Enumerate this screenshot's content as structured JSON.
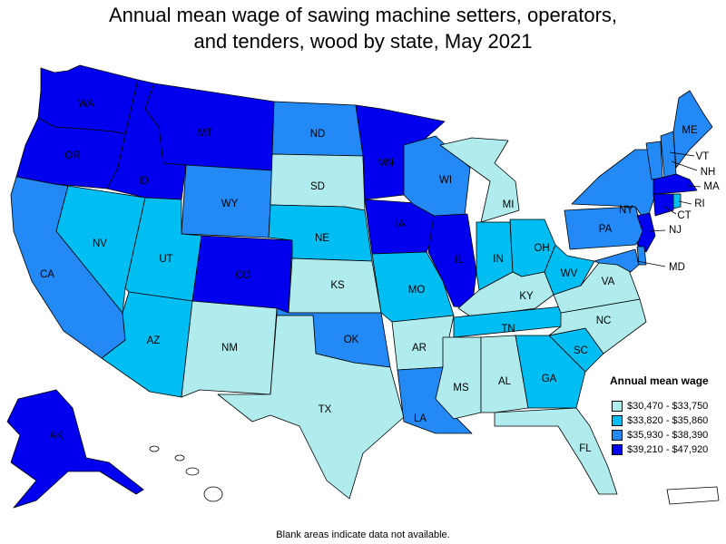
{
  "title_line1": "Annual mean wage of sawing machine setters, operators,",
  "title_line2": "and tenders, wood by state, May 2021",
  "legend": {
    "title": "Annual mean wage",
    "items": [
      {
        "label": "$30,470 - $33,750",
        "color": "#b0ecee"
      },
      {
        "label": "$33,820 - $35,860",
        "color": "#00bdf2"
      },
      {
        "label": "$35,930 - $38,390",
        "color": "#2389f5"
      },
      {
        "label": "$39,210 - $47,920",
        "color": "#0000ee"
      }
    ]
  },
  "note": "Blank areas indicate data not available.",
  "states": {
    "WA": 3,
    "OR": 3,
    "CA": 2,
    "NV": 1,
    "ID": 3,
    "MT": 3,
    "WY": 2,
    "UT": 1,
    "AZ": 1,
    "CO": 3,
    "NM": 0,
    "ND": 2,
    "SD": 0,
    "NE": 1,
    "KS": 0,
    "OK": 2,
    "TX": 0,
    "MN": 3,
    "IA": 3,
    "MO": 1,
    "AR": 0,
    "LA": 2,
    "WI": 2,
    "IL": 3,
    "MI": 0,
    "IN": 1,
    "OH": 1,
    "KY": 0,
    "TN": 1,
    "MS": 0,
    "AL": 0,
    "GA": 1,
    "FL": 0,
    "SC": 1,
    "NC": 0,
    "VA": 0,
    "WV": 1,
    "PA": 2,
    "NY": 2,
    "VT": 2,
    "NH": 2,
    "ME": 2,
    "MA": 3,
    "RI": 1,
    "CT": 3,
    "NJ": 3,
    "DE": 2,
    "MD": 2,
    "AK": 3,
    "HI": -1,
    "PR": -1
  }
}
